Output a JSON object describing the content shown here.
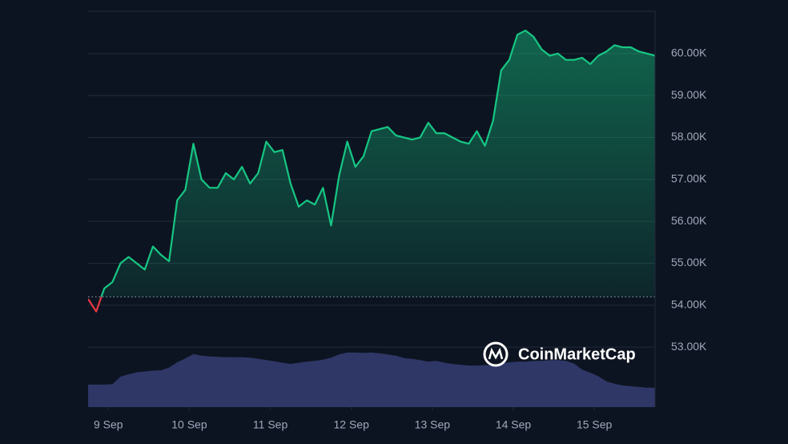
{
  "chart_data": {
    "type": "line",
    "watermark": "CoinMarketCap",
    "x": [
      -0.25,
      -0.15,
      -0.05,
      0.05,
      0.15,
      0.25,
      0.35,
      0.45,
      0.55,
      0.65,
      0.75,
      0.85,
      0.95,
      1.05,
      1.15,
      1.25,
      1.35,
      1.45,
      1.55,
      1.65,
      1.75,
      1.85,
      1.95,
      2.05,
      2.15,
      2.25,
      2.35,
      2.45,
      2.55,
      2.65,
      2.75,
      2.85,
      2.95,
      3.05,
      3.15,
      3.25,
      3.35,
      3.45,
      3.55,
      3.65,
      3.75,
      3.85,
      3.95,
      4.05,
      4.15,
      4.25,
      4.35,
      4.45,
      4.55,
      4.65,
      4.75,
      4.85,
      4.95,
      5.05,
      5.15,
      5.25,
      5.35,
      5.45,
      5.55,
      5.65,
      5.75,
      5.85,
      5.95,
      6.05,
      6.15,
      6.25,
      6.35,
      6.45,
      6.55,
      6.65,
      6.75
    ],
    "series": [
      {
        "color": "#16c784",
        "below_color": "#ea3943",
        "values": [
          54150,
          53850,
          54400,
          54550,
          55000,
          55150,
          55000,
          54850,
          55400,
          55200,
          55050,
          56500,
          56750,
          57850,
          57000,
          56800,
          56800,
          57150,
          57000,
          57300,
          56900,
          57150,
          57900,
          57650,
          57700,
          56900,
          56350,
          56500,
          56400,
          56800,
          55900,
          57100,
          57900,
          57300,
          57550,
          58150,
          58200,
          58250,
          58050,
          58000,
          57950,
          58000,
          58350,
          58100,
          58100,
          58000,
          57900,
          57850,
          58150,
          57800,
          58400,
          59600,
          59850,
          60450,
          60550,
          60400,
          60100,
          59950,
          60000,
          59850,
          59850,
          59900,
          59750,
          59950,
          60050,
          60200,
          60150,
          60150,
          60050,
          60000,
          59950
        ]
      },
      {
        "color": "#2e3766",
        "axis": "y2",
        "values": [
          5.7,
          5.7,
          5.7,
          5.8,
          7.7,
          8.3,
          8.8,
          9.0,
          9.2,
          9.3,
          10.0,
          11.3,
          12.3,
          13.4,
          13.0,
          12.8,
          12.7,
          12.6,
          12.6,
          12.6,
          12.5,
          12.2,
          11.9,
          11.6,
          11.2,
          10.9,
          11.2,
          11.5,
          11.7,
          12.0,
          12.5,
          13.3,
          13.8,
          13.8,
          13.7,
          13.8,
          13.6,
          13.3,
          13.0,
          12.4,
          12.2,
          11.9,
          11.5,
          11.7,
          11.2,
          10.9,
          10.7,
          10.5,
          10.5,
          10.6,
          10.6,
          11.1,
          11.3,
          11.5,
          11.5,
          11.7,
          11.7,
          11.9,
          11.9,
          11.7,
          11.0,
          9.5,
          8.7,
          7.8,
          6.5,
          5.9,
          5.5,
          5.3,
          5.1,
          4.9,
          4.9
        ]
      }
    ],
    "baseline": 54200,
    "xlim": [
      -0.25,
      6.75
    ],
    "xticks": [
      {
        "value": 0,
        "label": "9 Sep"
      },
      {
        "value": 1,
        "label": "10 Sep"
      },
      {
        "value": 2,
        "label": "11 Sep"
      },
      {
        "value": 3,
        "label": "12 Sep"
      },
      {
        "value": 4,
        "label": "13 Sep"
      },
      {
        "value": 5,
        "label": "14 Sep"
      },
      {
        "value": 6,
        "label": "15 Sep"
      }
    ],
    "ylim": [
      51570,
      61010
    ],
    "yticks": [
      {
        "value": 53000,
        "label": "53.00K"
      },
      {
        "value": 54000,
        "label": "54.00K"
      },
      {
        "value": 55000,
        "label": "55.00K"
      },
      {
        "value": 56000,
        "label": "56.00K"
      },
      {
        "value": 57000,
        "label": "57.00K"
      },
      {
        "value": 58000,
        "label": "58.00K"
      },
      {
        "value": 59000,
        "label": "59.00K"
      },
      {
        "value": 60000,
        "label": "60.00K"
      }
    ],
    "y2lim": [
      0,
      100
    ],
    "grid": true
  }
}
